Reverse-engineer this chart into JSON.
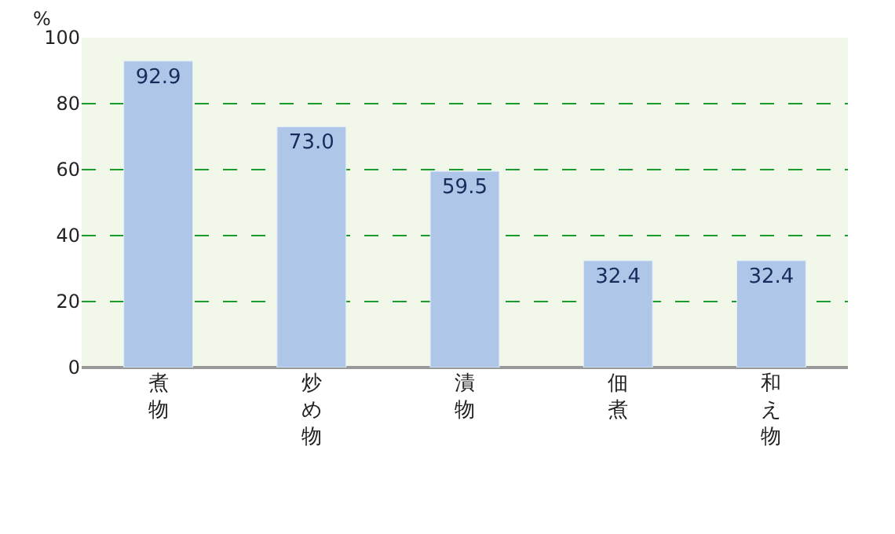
{
  "chart_data": {
    "type": "bar",
    "ylabel": "%",
    "categories": [
      "煮物",
      "炒め物",
      "漬物",
      "佃煮",
      "和え物"
    ],
    "values": [
      92.9,
      73.0,
      59.5,
      32.4,
      32.4
    ],
    "color": "#aec6e8",
    "ylim": [
      0,
      100
    ],
    "yticks": [
      0,
      20,
      40,
      60,
      80,
      100
    ],
    "value_labels": [
      "92.9",
      "73.0",
      "59.5",
      "32.4",
      "32.4"
    ],
    "grid": "y"
  }
}
